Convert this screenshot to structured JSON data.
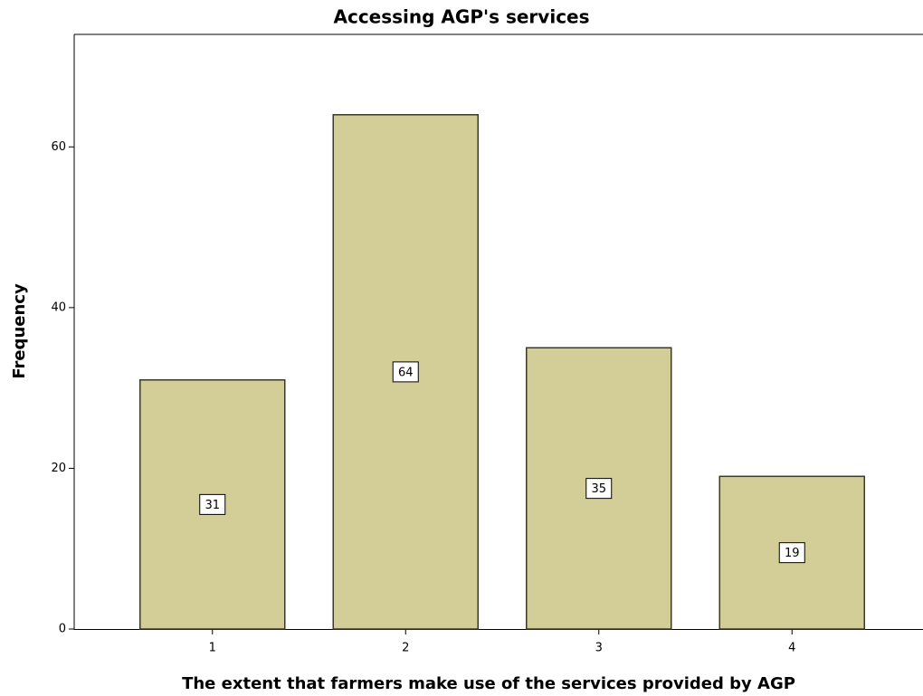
{
  "chart_data": {
    "type": "bar",
    "title": "Accessing AGP's services",
    "x_label": "The extent that farmers make use of the services provided by AGP",
    "y_label": "Frequency",
    "categories": [
      "1",
      "2",
      "3",
      "4"
    ],
    "values": [
      31,
      64,
      35,
      19
    ],
    "color": "#d3cd97",
    "ylim": [
      0,
      74
    ],
    "yticks": [
      0,
      20,
      40,
      60
    ],
    "grid": false
  }
}
